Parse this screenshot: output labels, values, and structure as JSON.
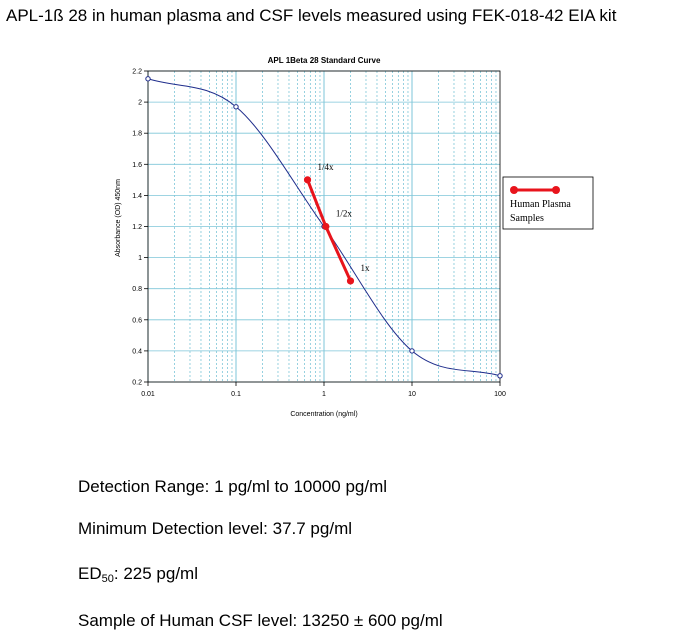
{
  "page_title": "APL-1ß  28 in human plasma and CSF levels measured using FEK-018-42 EIA kit",
  "chart_data": {
    "type": "scatter",
    "title": "APL 1Beta 28 Standard Curve",
    "xlabel": "Concentration (ng/ml)",
    "ylabel": "Absorbance (OD) 450nm",
    "xscale": "log",
    "xlim": [
      0.01,
      100
    ],
    "ylim": [
      0.2,
      2.2
    ],
    "grid": true,
    "x_ticks": [
      "0.01",
      "0.1",
      "1",
      "10",
      "100"
    ],
    "y_ticks": [
      "0.2",
      "0.4",
      "0.6",
      "0.8",
      "1",
      "1.2",
      "1.4",
      "1.6",
      "1.8",
      "2",
      "2.2"
    ],
    "standards": {
      "x": [
        0.01,
        0.1,
        1,
        10,
        100
      ],
      "y": [
        2.15,
        1.97,
        1.2,
        0.4,
        0.24
      ]
    },
    "series": [
      {
        "name": "Human Plasma Samples",
        "x": [
          0.65,
          1.05,
          2.0
        ],
        "y": [
          1.5,
          1.2,
          0.85
        ],
        "labels": [
          "1/4x",
          "1/2x",
          "1x"
        ],
        "color": "#e8141c"
      }
    ],
    "curve_color": "#1f2d8c",
    "grid_color": "#7ec6d8",
    "legend_position": "right"
  },
  "stats": {
    "detection_range": "Detection Range: 1 pg/ml  to 10000 pg/ml",
    "minimum_detection": "Minimum Detection level:  37.7 pg/ml",
    "ed50_label": "ED",
    "ed50_sub": "50",
    "ed50_value": ":  225 pg/ml",
    "csf_level": "Sample of Human CSF level:   13250 ± 600 pg/ml"
  }
}
